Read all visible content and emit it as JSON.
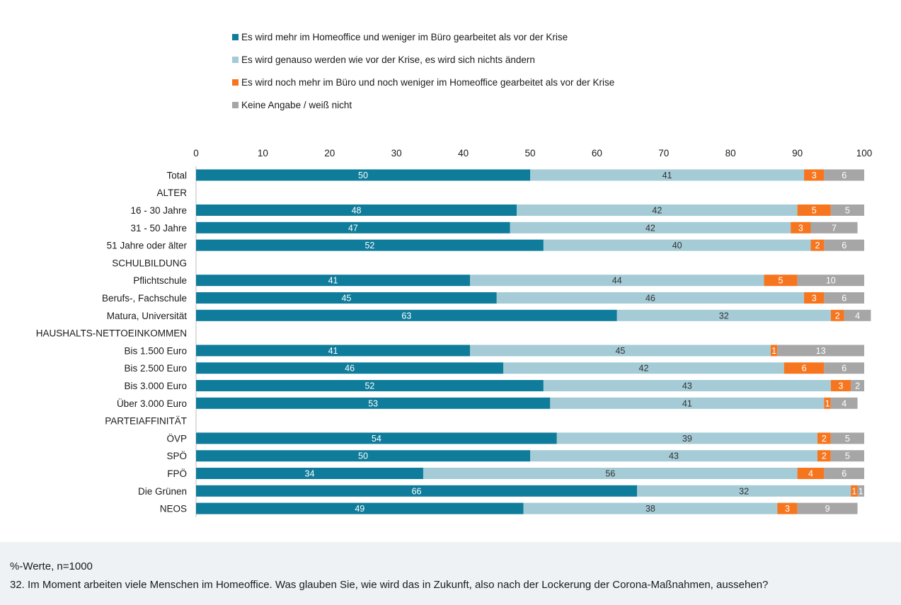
{
  "chart_data": {
    "type": "bar",
    "orientation": "horizontal",
    "stacked": true,
    "xlim": [
      0,
      100
    ],
    "xticks": [
      0,
      10,
      20,
      30,
      40,
      50,
      60,
      70,
      80,
      90,
      100
    ],
    "grid": false,
    "legend_position": "top",
    "categories": [
      "Total",
      "ALTER",
      "16 - 30 Jahre",
      "31 - 50 Jahre",
      "51 Jahre oder älter",
      "SCHULBILDUNG",
      "Pflichtschule",
      "Berufs-, Fachschule",
      "Matura, Universität",
      "HAUSHALTS-NETTOEINKOMMEN",
      "Bis 1.500 Euro",
      "Bis 2.500 Euro",
      "Bis 3.000 Euro",
      "Über 3.000 Euro",
      "PARTEIAFFINITÄT",
      "ÖVP",
      "SPÖ",
      "FPÖ",
      "Die Grünen",
      "NEOS"
    ],
    "series": [
      {
        "name": "Es wird mehr im Homeoffice und weniger im Büro gearbeitet als vor der Krise",
        "color": "#0e7c9a",
        "label_color": "#ffffff",
        "values": [
          50,
          null,
          48,
          47,
          52,
          null,
          41,
          45,
          63,
          null,
          41,
          46,
          52,
          53,
          null,
          54,
          50,
          34,
          66,
          49
        ]
      },
      {
        "name": "Es wird genauso werden wie vor der Krise, es wird sich nichts ändern",
        "color": "#a4cbd6",
        "label_color": "#333333",
        "values": [
          41,
          null,
          42,
          42,
          40,
          null,
          44,
          46,
          32,
          null,
          45,
          42,
          43,
          41,
          null,
          39,
          43,
          56,
          32,
          38
        ]
      },
      {
        "name": "Es wird noch mehr im Büro und noch weniger im Homeoffice gearbeitet als vor der Krise",
        "color": "#f6761f",
        "label_color": "#ffffff",
        "values": [
          3,
          null,
          5,
          3,
          2,
          null,
          5,
          3,
          2,
          null,
          1,
          6,
          3,
          1,
          null,
          2,
          2,
          4,
          1,
          3
        ]
      },
      {
        "name": "Keine Angabe / weiß nicht",
        "color": "#a6a6a6",
        "label_color": "#ffffff",
        "values": [
          6,
          null,
          5,
          7,
          6,
          null,
          10,
          6,
          4,
          null,
          13,
          6,
          2,
          4,
          null,
          5,
          5,
          6,
          1,
          9
        ]
      }
    ]
  },
  "footer": {
    "note": "%-Werte, n=1000",
    "question": "32. Im Moment arbeiten viele Menschen im Homeoffice. Was glauben Sie, wie wird das in Zukunft, also nach der Lockerung der Corona-Maßnahmen, aussehen?"
  }
}
